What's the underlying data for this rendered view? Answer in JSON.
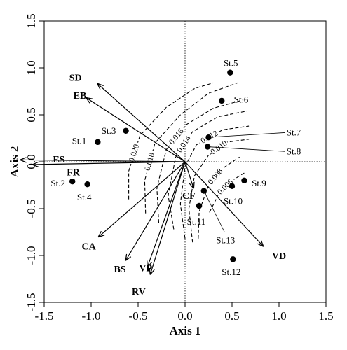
{
  "chart_data": {
    "type": "scatter",
    "xlabel": "Axis 1",
    "ylabel": "Axis 2",
    "xlim": [
      -1.5,
      1.5
    ],
    "ylim": [
      -1.5,
      1.5
    ],
    "xticks": [
      "-1.5",
      "-1.0",
      "-0.5",
      "0.0",
      "0.5",
      "1.0",
      "1.5"
    ],
    "yticks": [
      "-1.5",
      "-1.0",
      "-0.5",
      "0.0",
      "0.5",
      "1.0",
      "1.5"
    ],
    "grid": false,
    "zero_lines": true,
    "stations": [
      {
        "label": "St.1",
        "x": -0.93,
        "y": 0.21
      },
      {
        "label": "St.2",
        "x": -1.2,
        "y": -0.21
      },
      {
        "label": "St.3",
        "x": -0.63,
        "y": 0.33
      },
      {
        "label": "St.4",
        "x": -1.04,
        "y": -0.24
      },
      {
        "label": "St.5",
        "x": 0.48,
        "y": 0.95
      },
      {
        "label": "St.6",
        "x": 0.39,
        "y": 0.65
      },
      {
        "label": "St.7",
        "x": 0.25,
        "y": 0.26
      },
      {
        "label": "St.8",
        "x": 0.24,
        "y": 0.16
      },
      {
        "label": "St.9",
        "x": 0.63,
        "y": -0.2
      },
      {
        "label": "St.10",
        "x": 0.5,
        "y": -0.26
      },
      {
        "label": "St.11",
        "x": 0.15,
        "y": -0.47
      },
      {
        "label": "St.12",
        "x": 0.51,
        "y": -1.04
      },
      {
        "label": "St.13",
        "x": 0.2,
        "y": -0.31
      }
    ],
    "vectors": [
      {
        "label": "SD",
        "x": -0.93,
        "y": 0.83
      },
      {
        "label": "EB",
        "x": -1.05,
        "y": 0.68
      },
      {
        "label": "ES",
        "x": -1.75,
        "y": 0.02
      },
      {
        "label": "FR",
        "x": -1.62,
        "y": -0.03
      },
      {
        "label": "CA",
        "x": -0.92,
        "y": -0.8
      },
      {
        "label": "BS",
        "x": -0.63,
        "y": -1.05
      },
      {
        "label": "VP",
        "x": -0.4,
        "y": -1.12
      },
      {
        "label": "RV",
        "x": -0.37,
        "y": -1.2
      },
      {
        "label": "VD",
        "x": 0.83,
        "y": -0.9
      },
      {
        "label": "CF",
        "x": 0.09,
        "y": -0.28
      }
    ],
    "contours": [
      {
        "label": "0.020",
        "points": [
          [
            -0.6,
            -0.4
          ],
          [
            -0.6,
            -0.1
          ],
          [
            -0.48,
            0.28
          ],
          [
            -0.2,
            0.58
          ],
          [
            0.1,
            0.78
          ],
          [
            0.3,
            0.84
          ]
        ]
      },
      {
        "label": "0.018",
        "points": [
          [
            -0.42,
            -0.55
          ],
          [
            -0.43,
            -0.2
          ],
          [
            -0.32,
            0.2
          ],
          [
            -0.05,
            0.5
          ],
          [
            0.25,
            0.73
          ],
          [
            0.56,
            0.84
          ]
        ]
      },
      {
        "label": "0.016",
        "points": [
          [
            -0.28,
            -0.65
          ],
          [
            -0.3,
            -0.28
          ],
          [
            -0.2,
            0.13
          ],
          [
            0.02,
            0.4
          ],
          [
            0.3,
            0.57
          ],
          [
            0.62,
            0.66
          ]
        ]
      },
      {
        "label": "0.014",
        "points": [
          [
            -0.12,
            -0.72
          ],
          [
            -0.18,
            -0.36
          ],
          [
            -0.1,
            0.05
          ],
          [
            0.08,
            0.32
          ],
          [
            0.35,
            0.48
          ],
          [
            0.66,
            0.54
          ]
        ]
      },
      {
        "label": "0.012",
        "points": [
          [
            0.0,
            -0.82
          ],
          [
            -0.05,
            -0.45
          ],
          [
            0.0,
            -0.05
          ],
          [
            0.12,
            0.18
          ],
          [
            0.4,
            0.34
          ],
          [
            0.68,
            0.38
          ]
        ]
      },
      {
        "label": "-0.010",
        "points": [
          [
            0.08,
            -0.86
          ],
          [
            0.04,
            -0.5
          ],
          [
            0.1,
            -0.15
          ],
          [
            0.25,
            0.07
          ],
          [
            0.45,
            0.21
          ],
          [
            0.68,
            0.24
          ]
        ]
      },
      {
        "label": "0.008",
        "points": [
          [
            0.14,
            -0.82
          ],
          [
            0.15,
            -0.53
          ],
          [
            0.25,
            -0.25
          ],
          [
            0.4,
            -0.07
          ],
          [
            0.58,
            0.05
          ]
        ]
      },
      {
        "label": "0.006",
        "points": [
          [
            0.26,
            -0.54
          ],
          [
            0.36,
            -0.34
          ],
          [
            0.5,
            -0.2
          ],
          [
            0.63,
            -0.12
          ]
        ]
      }
    ]
  }
}
